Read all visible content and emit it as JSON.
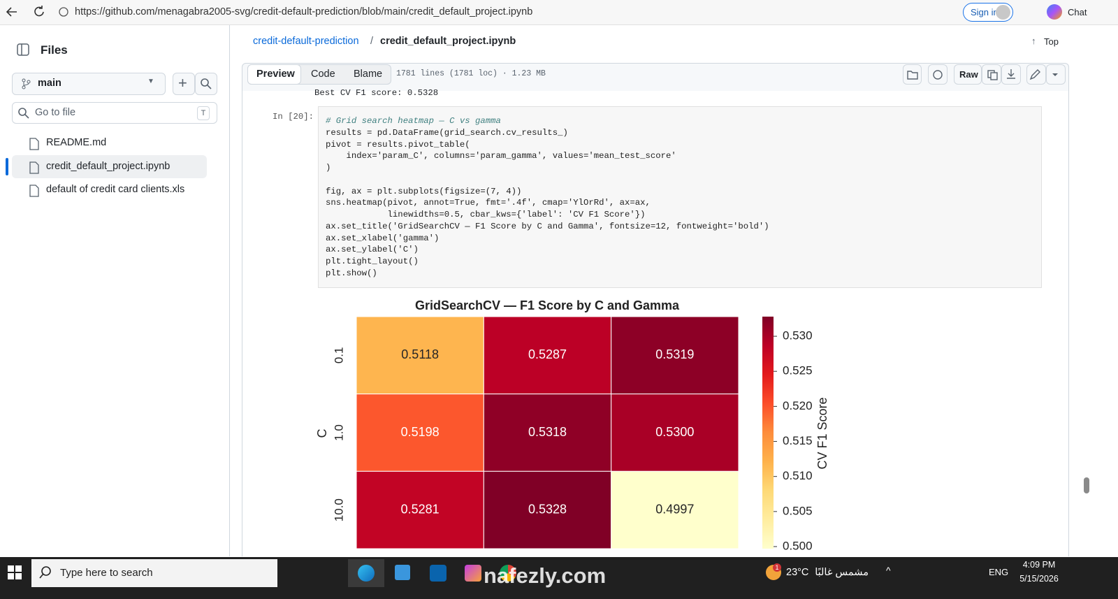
{
  "browser": {
    "url": "https://github.com/menagabra2005-svg/credit-default-prediction/blob/main/credit_default_project.ipynb",
    "sign_in": "Sign in",
    "chat": "Chat"
  },
  "sidebar": {
    "title": "Files",
    "branch": "main",
    "search_placeholder": "Go to file",
    "search_shortcut": "T",
    "files": [
      "README.md",
      "credit_default_project.ipynb",
      "default of credit card clients.xls"
    ]
  },
  "file": {
    "repo": "credit-default-prediction",
    "separator": "/",
    "name": "credit_default_project.ipynb",
    "top": "Top",
    "tabs": [
      "Preview",
      "Code",
      "Blame"
    ],
    "info": "1781 lines (1781 loc) · 1.23 MB",
    "raw": "Raw"
  },
  "notebook": {
    "output_line": "Best CV F1 score: 0.5328",
    "prompt": "In [20]:",
    "code": [
      [
        "# Grid search heatmap — C vs gamma",
        "results = pd.DataFrame(grid_search.cv_results_)",
        "pivot = results.pivot_table(",
        "    index='param_C', columns='param_gamma', values='mean_test_score'",
        ")"
      ],
      [
        "fig, ax = plt.subplots(figsize=(7, 4))",
        "sns.heatmap(pivot, annot=True, fmt='.4f', cmap='YlOrRd', ax=ax,",
        "            linewidths=0.5, cbar_kws={'label': 'CV F1 Score'})",
        "ax.set_title('GridSearchCV — F1 Score by C and Gamma', fontsize=12, fontweight='bold')",
        "ax.set_xlabel('gamma')",
        "ax.set_ylabel('C')",
        "plt.tight_layout()",
        "plt.show()"
      ]
    ]
  },
  "heatmap": {
    "title": "GridSearchCV — F1 Score by C and Gamma",
    "ylabel": "C",
    "row_labels": [
      "0.1",
      "1.0",
      "10.0"
    ],
    "values": [
      [
        0.5118,
        0.5287,
        0.5319
      ],
      [
        0.5198,
        0.5318,
        0.53
      ],
      [
        0.5281,
        0.5328,
        0.4997
      ]
    ],
    "value_labels": [
      [
        "0.5118",
        "0.5287",
        "0.5319"
      ],
      [
        "0.5198",
        "0.5318",
        "0.5300"
      ],
      [
        "0.5281",
        "0.5328",
        "0.4997"
      ]
    ],
    "colormap": "YlOrRd",
    "clim": [
      0.4997,
      0.5328
    ],
    "colorbar_label": "CV F1 Score",
    "colorbar_ticks": [
      {
        "value": 0.5,
        "label": "0.500"
      },
      0.505,
      {
        "value": 0.51,
        "label": "0.510"
      },
      0.515,
      {
        "value": 0.52,
        "label": "0.520"
      },
      0.525,
      {
        "value": 0.53,
        "label": "0.530"
      }
    ]
  },
  "watermark": "nafezly.com",
  "taskbar": {
    "search": "Type here to search",
    "badge": "1",
    "temperature": "23°C",
    "weather": "مشمس غالبًا",
    "language": "ENG",
    "time": "4:09 PM",
    "date": "5/15/2026"
  }
}
